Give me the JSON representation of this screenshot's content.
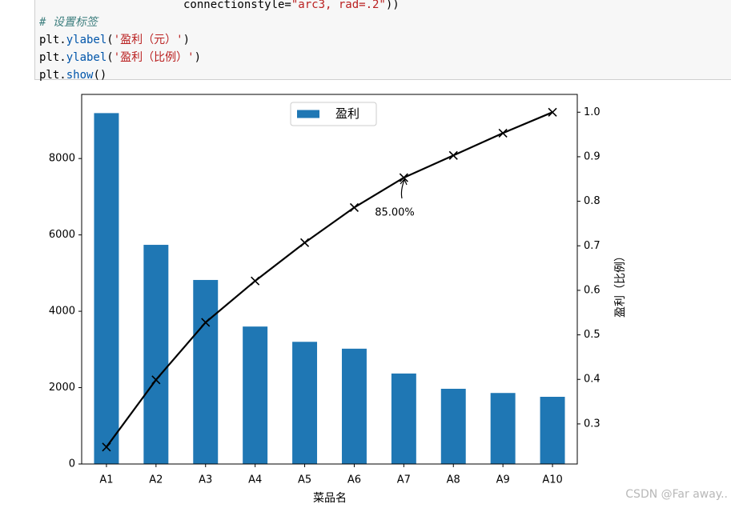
{
  "code_lines": [
    [
      {
        "text": "connectionstyle=",
        "kind": "plain"
      },
      {
        "text": "\"arc3, rad=.2\"",
        "kind": "string"
      },
      {
        "text": "))",
        "kind": "plain"
      }
    ],
    [
      {
        "text": "# 设置标签",
        "kind": "comment"
      }
    ],
    [
      {
        "text": "plt.",
        "kind": "plain"
      },
      {
        "text": "ylabel",
        "kind": "func"
      },
      {
        "text": "(",
        "kind": "plain"
      },
      {
        "text": "'盈利（元）'",
        "kind": "string"
      },
      {
        "text": ")",
        "kind": "plain"
      }
    ],
    [
      {
        "text": "plt.",
        "kind": "plain"
      },
      {
        "text": "ylabel",
        "kind": "func"
      },
      {
        "text": "(",
        "kind": "plain"
      },
      {
        "text": "'盈利（比例）'",
        "kind": "string"
      },
      {
        "text": ")",
        "kind": "plain"
      }
    ],
    [
      {
        "text": "plt.",
        "kind": "plain"
      },
      {
        "text": "show",
        "kind": "func"
      },
      {
        "text": "()",
        "kind": "plain"
      }
    ]
  ],
  "chart_data": {
    "type": "bar",
    "xlabel": "菜品名",
    "y2label": "盈利（比例）",
    "categories": [
      "A1",
      "A2",
      "A3",
      "A4",
      "A5",
      "A6",
      "A7",
      "A8",
      "A9",
      "A10"
    ],
    "series": [
      {
        "name": "盈利",
        "type": "bar",
        "color": "#1f77b4",
        "values": [
          9190,
          5740,
          4820,
          3600,
          3200,
          3020,
          2370,
          1970,
          1860,
          1760
        ]
      },
      {
        "type": "line",
        "axis": "y2",
        "color": "#000000",
        "values": [
          0.248,
          0.399,
          0.528,
          0.621,
          0.707,
          0.786,
          0.853,
          0.903,
          0.953,
          1.0
        ]
      }
    ],
    "ylim": [
      0,
      9680
    ],
    "yticks": [
      0,
      2000,
      4000,
      6000,
      8000
    ],
    "y2lim": [
      0.21,
      1.04
    ],
    "y2ticks": [
      0.3,
      0.4,
      0.5,
      0.6,
      0.7,
      0.8,
      0.9,
      {
        "value": 1.0,
        "label": "1.0"
      }
    ],
    "legend": "upper center",
    "annotations": [
      "85.00%"
    ]
  },
  "watermark": "CSDN @Far away.."
}
